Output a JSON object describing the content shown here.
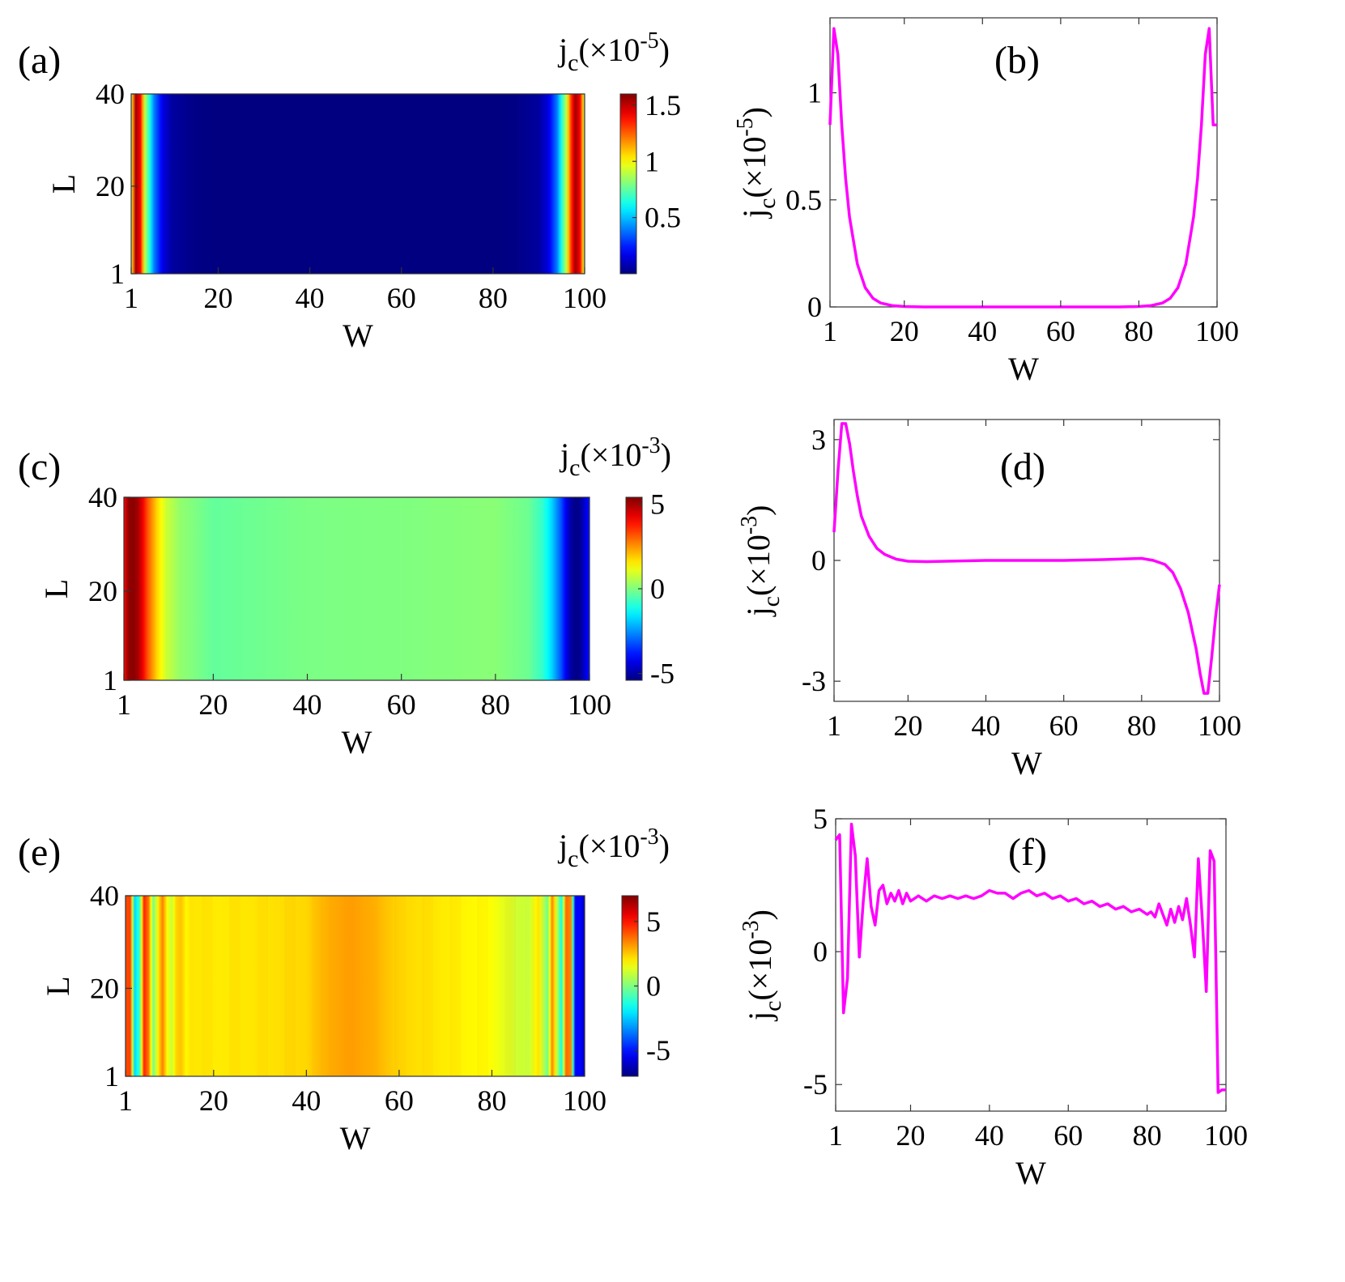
{
  "colors": {
    "line": "#ff00ff",
    "axis": "#333333"
  },
  "chart_data": [
    {
      "panel": "(a)",
      "type": "heatmap",
      "xlabel": "W",
      "ylabel": "L",
      "xticks": [
        "1",
        "20",
        "40",
        "60",
        "80",
        "100"
      ],
      "yticks": [
        "1",
        "20",
        "40"
      ],
      "xlim": [
        1,
        100
      ],
      "ylim": [
        1,
        40
      ],
      "colorbar": {
        "title_base": "j",
        "title_sub": "c",
        "title_scale": "(×10",
        "title_exp": "-5",
        "title_close": ")",
        "ticks": [
          "0.5",
          "1",
          "1.5"
        ],
        "tick_values": [
          0.5,
          1,
          1.5
        ],
        "range": [
          0,
          1.6
        ],
        "colormap": "jet"
      },
      "columns_profile": "edge_peaks",
      "values_x": [
        1,
        2,
        3,
        4,
        6,
        8,
        10,
        15,
        20,
        30,
        50,
        70,
        80,
        85,
        90,
        92,
        94,
        96,
        97,
        98,
        99,
        100
      ],
      "values": [
        0.9,
        1.55,
        1.4,
        0.9,
        0.4,
        0.15,
        0.05,
        0.01,
        0.0,
        0.0,
        0.0,
        0.0,
        0.0,
        0.01,
        0.05,
        0.15,
        0.4,
        0.9,
        1.3,
        1.55,
        1.4,
        0.9
      ]
    },
    {
      "panel": "(b)",
      "type": "line",
      "xlabel": "W",
      "ylabel": {
        "base": "j",
        "sub": "c",
        "scale": "(×10",
        "exp": "-5",
        "close": ")"
      },
      "xticks": [
        "1",
        "20",
        "40",
        "60",
        "80",
        "100"
      ],
      "yticks": [
        "0",
        "0.5",
        "1"
      ],
      "ytick_values": [
        0,
        0.5,
        1
      ],
      "xlim": [
        1,
        100
      ],
      "ylim": [
        0,
        1.35
      ],
      "series": [
        {
          "x": [
            1,
            2,
            3,
            4,
            5,
            6,
            8,
            10,
            12,
            14,
            17,
            20,
            25,
            30,
            40,
            50,
            60,
            70,
            75,
            80,
            83,
            86,
            88,
            90,
            92,
            94,
            95,
            96,
            97,
            98,
            99,
            100
          ],
          "values": [
            0.85,
            1.3,
            1.18,
            0.85,
            0.6,
            0.42,
            0.2,
            0.09,
            0.04,
            0.018,
            0.006,
            0.002,
            0.0,
            0.0,
            0.0,
            0.0,
            0.0,
            0.0,
            0.0,
            0.002,
            0.006,
            0.018,
            0.04,
            0.09,
            0.2,
            0.42,
            0.6,
            0.85,
            1.18,
            1.3,
            0.85,
            0.85
          ]
        }
      ]
    },
    {
      "panel": "(c)",
      "type": "heatmap",
      "xlabel": "W",
      "ylabel": "L",
      "xticks": [
        "1",
        "20",
        "40",
        "60",
        "80",
        "100"
      ],
      "yticks": [
        "1",
        "20",
        "40"
      ],
      "xlim": [
        1,
        100
      ],
      "ylim": [
        1,
        40
      ],
      "colorbar": {
        "title_base": "j",
        "title_sub": "c",
        "title_scale": "(×10",
        "title_exp": "-3",
        "title_close": ")",
        "ticks": [
          "-5",
          "0",
          "5"
        ],
        "tick_values": [
          -5,
          0,
          5
        ],
        "range": [
          -5.4,
          5.4
        ],
        "colormap": "jet"
      },
      "columns_profile": "antisymmetric",
      "values_x": [
        1,
        2,
        3,
        4,
        5,
        6,
        8,
        10,
        13,
        20,
        40,
        60,
        80,
        87,
        90,
        92,
        94,
        95,
        96,
        97,
        98,
        99,
        100
      ],
      "values": [
        4.0,
        5.2,
        5.3,
        5.0,
        4.2,
        3.2,
        1.8,
        0.8,
        0.2,
        -0.3,
        -0.05,
        0.0,
        0.1,
        -0.2,
        -0.8,
        -1.8,
        -3.2,
        -4.2,
        -5.0,
        -5.3,
        -5.2,
        -4.5,
        -3.8
      ]
    },
    {
      "panel": "(d)",
      "type": "line",
      "xlabel": "W",
      "ylabel": {
        "base": "j",
        "sub": "c",
        "scale": "(×10",
        "exp": "-3",
        "close": ")"
      },
      "xticks": [
        "1",
        "20",
        "40",
        "60",
        "80",
        "100"
      ],
      "yticks": [
        "-3",
        "0",
        "3"
      ],
      "ytick_values": [
        -3,
        0,
        3
      ],
      "xlim": [
        1,
        100
      ],
      "ylim": [
        -3.5,
        3.5
      ],
      "series": [
        {
          "x": [
            1,
            2,
            3,
            4,
            5,
            6,
            7,
            8,
            10,
            12,
            14,
            17,
            20,
            25,
            30,
            40,
            50,
            60,
            70,
            80,
            83,
            86,
            88,
            90,
            92,
            94,
            95,
            96,
            97,
            98,
            99,
            100
          ],
          "values": [
            0.7,
            2.2,
            3.4,
            3.4,
            2.9,
            2.2,
            1.6,
            1.1,
            0.6,
            0.3,
            0.15,
            0.03,
            -0.02,
            -0.03,
            -0.02,
            0.0,
            0.0,
            0.0,
            0.02,
            0.05,
            0.0,
            -0.1,
            -0.3,
            -0.7,
            -1.3,
            -2.2,
            -2.8,
            -3.3,
            -3.3,
            -2.4,
            -1.4,
            -0.6
          ]
        }
      ]
    },
    {
      "panel": "(e)",
      "type": "heatmap",
      "xlabel": "W",
      "ylabel": "L",
      "xticks": [
        "1",
        "20",
        "40",
        "60",
        "80",
        "100"
      ],
      "yticks": [
        "1",
        "20",
        "40"
      ],
      "xlim": [
        1,
        100
      ],
      "ylim": [
        1,
        40
      ],
      "colorbar": {
        "title_base": "j",
        "title_sub": "c",
        "title_scale": "(×10",
        "title_exp": "-3",
        "title_close": ")",
        "ticks": [
          "-5",
          "0",
          "5"
        ],
        "tick_values": [
          -5,
          0,
          5
        ],
        "range": [
          -7,
          7
        ],
        "colormap": "jet"
      },
      "columns_profile": "oscillating",
      "values_x": [
        1,
        2,
        3,
        4,
        5,
        6,
        7,
        8,
        9,
        10,
        11,
        12,
        13,
        14,
        15,
        20,
        30,
        40,
        45,
        50,
        55,
        60,
        70,
        80,
        85,
        88,
        90,
        92,
        93,
        94,
        95,
        96,
        97,
        98,
        99,
        100
      ],
      "values": [
        4.2,
        4.4,
        -2.3,
        -1.0,
        4.8,
        3.6,
        -0.2,
        1.9,
        3.5,
        1.7,
        1.0,
        2.3,
        2.5,
        1.8,
        2.1,
        2.0,
        2.1,
        2.3,
        2.9,
        3.1,
        2.8,
        2.3,
        2.0,
        1.7,
        1.1,
        1.0,
        2.0,
        -0.2,
        3.5,
        1.0,
        -1.5,
        3.8,
        3.4,
        -5.3,
        -5.2,
        -6.0
      ]
    },
    {
      "panel": "(f)",
      "type": "line",
      "xlabel": "W",
      "ylabel": {
        "base": "j",
        "sub": "c",
        "scale": "(×10",
        "exp": "-3",
        "close": ")"
      },
      "xticks": [
        "1",
        "20",
        "40",
        "60",
        "80",
        "100"
      ],
      "yticks": [
        "-5",
        "0",
        "5"
      ],
      "ytick_values": [
        -5,
        0,
        5
      ],
      "xlim": [
        1,
        100
      ],
      "ylim": [
        -6,
        5
      ],
      "series": [
        {
          "x": [
            1,
            2,
            3,
            4,
            5,
            6,
            7,
            8,
            9,
            10,
            11,
            12,
            13,
            14,
            15,
            16,
            17,
            18,
            19,
            20,
            22,
            24,
            26,
            28,
            30,
            32,
            34,
            36,
            38,
            40,
            42,
            44,
            46,
            48,
            50,
            52,
            54,
            56,
            58,
            60,
            62,
            64,
            66,
            68,
            70,
            72,
            74,
            76,
            78,
            80,
            81,
            82,
            83,
            84,
            85,
            86,
            87,
            88,
            89,
            90,
            91,
            92,
            93,
            94,
            95,
            96,
            97,
            98,
            99,
            100
          ],
          "values": [
            4.2,
            4.4,
            -2.3,
            -1.0,
            4.8,
            3.6,
            -0.2,
            1.9,
            3.5,
            1.7,
            1.0,
            2.3,
            2.5,
            1.8,
            2.2,
            1.9,
            2.3,
            1.8,
            2.2,
            1.9,
            2.1,
            1.9,
            2.1,
            2.0,
            2.1,
            2.0,
            2.1,
            2.0,
            2.1,
            2.3,
            2.2,
            2.2,
            2.0,
            2.2,
            2.3,
            2.1,
            2.2,
            2.0,
            2.1,
            1.9,
            2.0,
            1.8,
            1.9,
            1.7,
            1.8,
            1.6,
            1.7,
            1.5,
            1.6,
            1.4,
            1.5,
            1.3,
            1.8,
            1.4,
            1.0,
            1.6,
            1.1,
            1.7,
            1.2,
            2.0,
            1.0,
            -0.2,
            3.5,
            1.2,
            -1.5,
            3.8,
            3.4,
            -5.3,
            -5.2,
            -5.2
          ]
        }
      ]
    }
  ]
}
